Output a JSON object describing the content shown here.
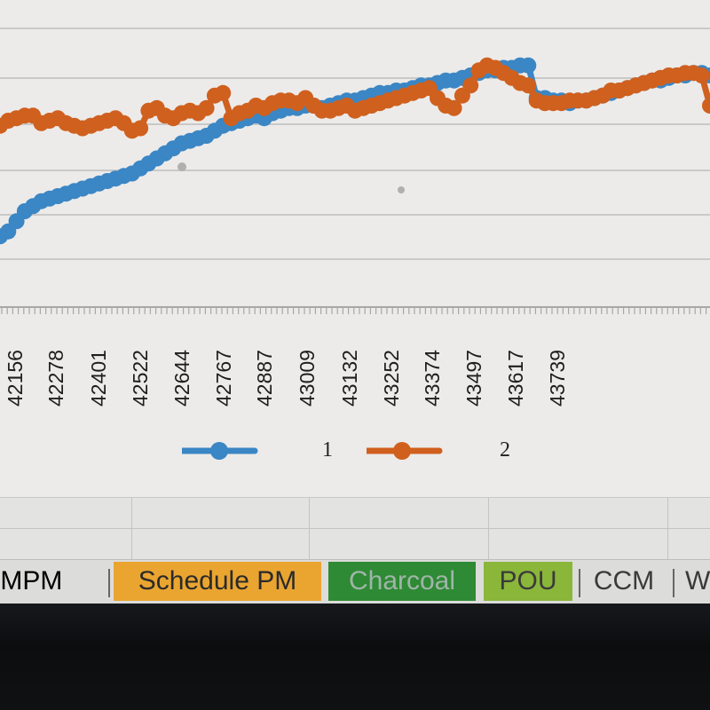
{
  "chart_data": {
    "type": "line",
    "x_tick_labels": [
      "42156",
      "42278",
      "42401",
      "42522",
      "42644",
      "42767",
      "42887",
      "43009",
      "43132",
      "43252",
      "43374",
      "43497",
      "43617",
      "43739"
    ],
    "xlim": [
      42130,
      43850
    ],
    "series": [
      {
        "name": "1",
        "color": "#3b86c4",
        "points": [
          [
            42130,
            33
          ],
          [
            42150,
            34
          ],
          [
            42170,
            36
          ],
          [
            42190,
            38
          ],
          [
            42210,
            39
          ],
          [
            42230,
            40
          ],
          [
            42250,
            40.5
          ],
          [
            42270,
            41
          ],
          [
            42290,
            41.5
          ],
          [
            42310,
            42
          ],
          [
            42330,
            42.5
          ],
          [
            42350,
            43
          ],
          [
            42370,
            43.5
          ],
          [
            42390,
            44
          ],
          [
            42410,
            44.5
          ],
          [
            42430,
            45
          ],
          [
            42450,
            45.5
          ],
          [
            42470,
            46.5
          ],
          [
            42490,
            47.5
          ],
          [
            42510,
            48.5
          ],
          [
            42530,
            49.5
          ],
          [
            42550,
            50.5
          ],
          [
            42570,
            51.5
          ],
          [
            42590,
            52
          ],
          [
            42610,
            52.5
          ],
          [
            42630,
            53
          ],
          [
            42650,
            54
          ],
          [
            42670,
            55
          ],
          [
            42690,
            55.5
          ],
          [
            42710,
            56
          ],
          [
            42730,
            56.5
          ],
          [
            42750,
            57
          ],
          [
            42770,
            56.5
          ],
          [
            42790,
            57.5
          ],
          [
            42810,
            58
          ],
          [
            42830,
            58.5
          ],
          [
            42850,
            58.5
          ],
          [
            42870,
            59
          ],
          [
            42890,
            59
          ],
          [
            42910,
            58.5
          ],
          [
            42930,
            59
          ],
          [
            42950,
            59.5
          ],
          [
            42970,
            60
          ],
          [
            42990,
            60
          ],
          [
            43010,
            60.5
          ],
          [
            43030,
            61
          ],
          [
            43050,
            61.5
          ],
          [
            43070,
            61.5
          ],
          [
            43090,
            62
          ],
          [
            43110,
            62
          ],
          [
            43130,
            62.5
          ],
          [
            43150,
            63
          ],
          [
            43170,
            63
          ],
          [
            43190,
            63.5
          ],
          [
            43210,
            64
          ],
          [
            43230,
            64
          ],
          [
            43250,
            64.5
          ],
          [
            43270,
            65
          ],
          [
            43290,
            65.5
          ],
          [
            43310,
            66
          ],
          [
            43330,
            66
          ],
          [
            43350,
            66.5
          ],
          [
            43370,
            66.5
          ],
          [
            43390,
            67
          ],
          [
            43410,
            67
          ],
          [
            43430,
            60.5
          ],
          [
            43450,
            60.5
          ],
          [
            43470,
            60
          ],
          [
            43490,
            60
          ],
          [
            43510,
            59.5
          ],
          [
            43530,
            60
          ],
          [
            43550,
            60
          ],
          [
            43570,
            60.5
          ],
          [
            43590,
            61
          ],
          [
            43610,
            61.5
          ],
          [
            43630,
            62
          ],
          [
            43650,
            62.5
          ],
          [
            43670,
            63
          ],
          [
            43690,
            63.5
          ],
          [
            43710,
            64
          ],
          [
            43730,
            64
          ],
          [
            43750,
            64.5
          ],
          [
            43770,
            65
          ],
          [
            43790,
            65
          ],
          [
            43810,
            65.5
          ],
          [
            43830,
            65.5
          ],
          [
            43850,
            65
          ]
        ]
      },
      {
        "name": "2",
        "color": "#d0601e",
        "points": [
          [
            42130,
            55
          ],
          [
            42150,
            56
          ],
          [
            42170,
            56.5
          ],
          [
            42190,
            57
          ],
          [
            42210,
            57
          ],
          [
            42230,
            55.5
          ],
          [
            42250,
            56
          ],
          [
            42270,
            56.5
          ],
          [
            42290,
            55.5
          ],
          [
            42310,
            55
          ],
          [
            42330,
            54.5
          ],
          [
            42350,
            55
          ],
          [
            42370,
            55.5
          ],
          [
            42390,
            56
          ],
          [
            42410,
            56.5
          ],
          [
            42430,
            55.5
          ],
          [
            42450,
            54
          ],
          [
            42470,
            54.5
          ],
          [
            42490,
            58
          ],
          [
            42510,
            58.5
          ],
          [
            42530,
            57
          ],
          [
            42550,
            56.5
          ],
          [
            42570,
            57.5
          ],
          [
            42590,
            58
          ],
          [
            42610,
            57.5
          ],
          [
            42630,
            58.5
          ],
          [
            42650,
            61
          ],
          [
            42670,
            61.5
          ],
          [
            42690,
            56.5
          ],
          [
            42710,
            57.5
          ],
          [
            42730,
            58
          ],
          [
            42750,
            59
          ],
          [
            42770,
            58.5
          ],
          [
            42790,
            59.5
          ],
          [
            42810,
            60
          ],
          [
            42830,
            60
          ],
          [
            42850,
            59.5
          ],
          [
            42870,
            60.5
          ],
          [
            42890,
            59
          ],
          [
            42910,
            58
          ],
          [
            42930,
            58
          ],
          [
            42950,
            58.5
          ],
          [
            42970,
            59
          ],
          [
            42990,
            58
          ],
          [
            43010,
            58.5
          ],
          [
            43030,
            59
          ],
          [
            43050,
            59.5
          ],
          [
            43070,
            60
          ],
          [
            43090,
            60.5
          ],
          [
            43110,
            61
          ],
          [
            43130,
            61.5
          ],
          [
            43150,
            62
          ],
          [
            43170,
            62.5
          ],
          [
            43190,
            60.5
          ],
          [
            43210,
            59
          ],
          [
            43230,
            58.5
          ],
          [
            43250,
            61
          ],
          [
            43270,
            63
          ],
          [
            43290,
            66
          ],
          [
            43310,
            67
          ],
          [
            43330,
            66.5
          ],
          [
            43350,
            65.5
          ],
          [
            43370,
            64.5
          ],
          [
            43390,
            63.5
          ],
          [
            43410,
            63
          ],
          [
            43430,
            60
          ],
          [
            43450,
            59.5
          ],
          [
            43470,
            59.5
          ],
          [
            43490,
            59.5
          ],
          [
            43510,
            60
          ],
          [
            43530,
            60
          ],
          [
            43550,
            60
          ],
          [
            43570,
            60.5
          ],
          [
            43590,
            61
          ],
          [
            43610,
            62
          ],
          [
            43630,
            62
          ],
          [
            43650,
            62.5
          ],
          [
            43670,
            63
          ],
          [
            43690,
            63.5
          ],
          [
            43710,
            64
          ],
          [
            43730,
            64.5
          ],
          [
            43750,
            65
          ],
          [
            43770,
            65
          ],
          [
            43790,
            65.5
          ],
          [
            43810,
            65.5
          ],
          [
            43830,
            65
          ],
          [
            43850,
            59
          ]
        ]
      }
    ],
    "grid": true,
    "legend_position": "bottom"
  },
  "sheet_tabs": [
    {
      "label": "I-MPM",
      "bg": "#e0e0de",
      "color": "#2a2a2a"
    },
    {
      "label": "Schedule PM",
      "bg": "#eaa530",
      "color": "#2a2a2a"
    },
    {
      "label": "Charcoal",
      "bg": "#2e8a34",
      "color": "#9fb5a8"
    },
    {
      "label": "POU",
      "bg": "#8ab63a",
      "color": "#3a3a3a"
    },
    {
      "label": "CCM",
      "bg": "#e0e0de",
      "color": "#3a3a3a"
    },
    {
      "label": "W",
      "bg": "#e0e0de",
      "color": "#3a3a3a"
    }
  ]
}
